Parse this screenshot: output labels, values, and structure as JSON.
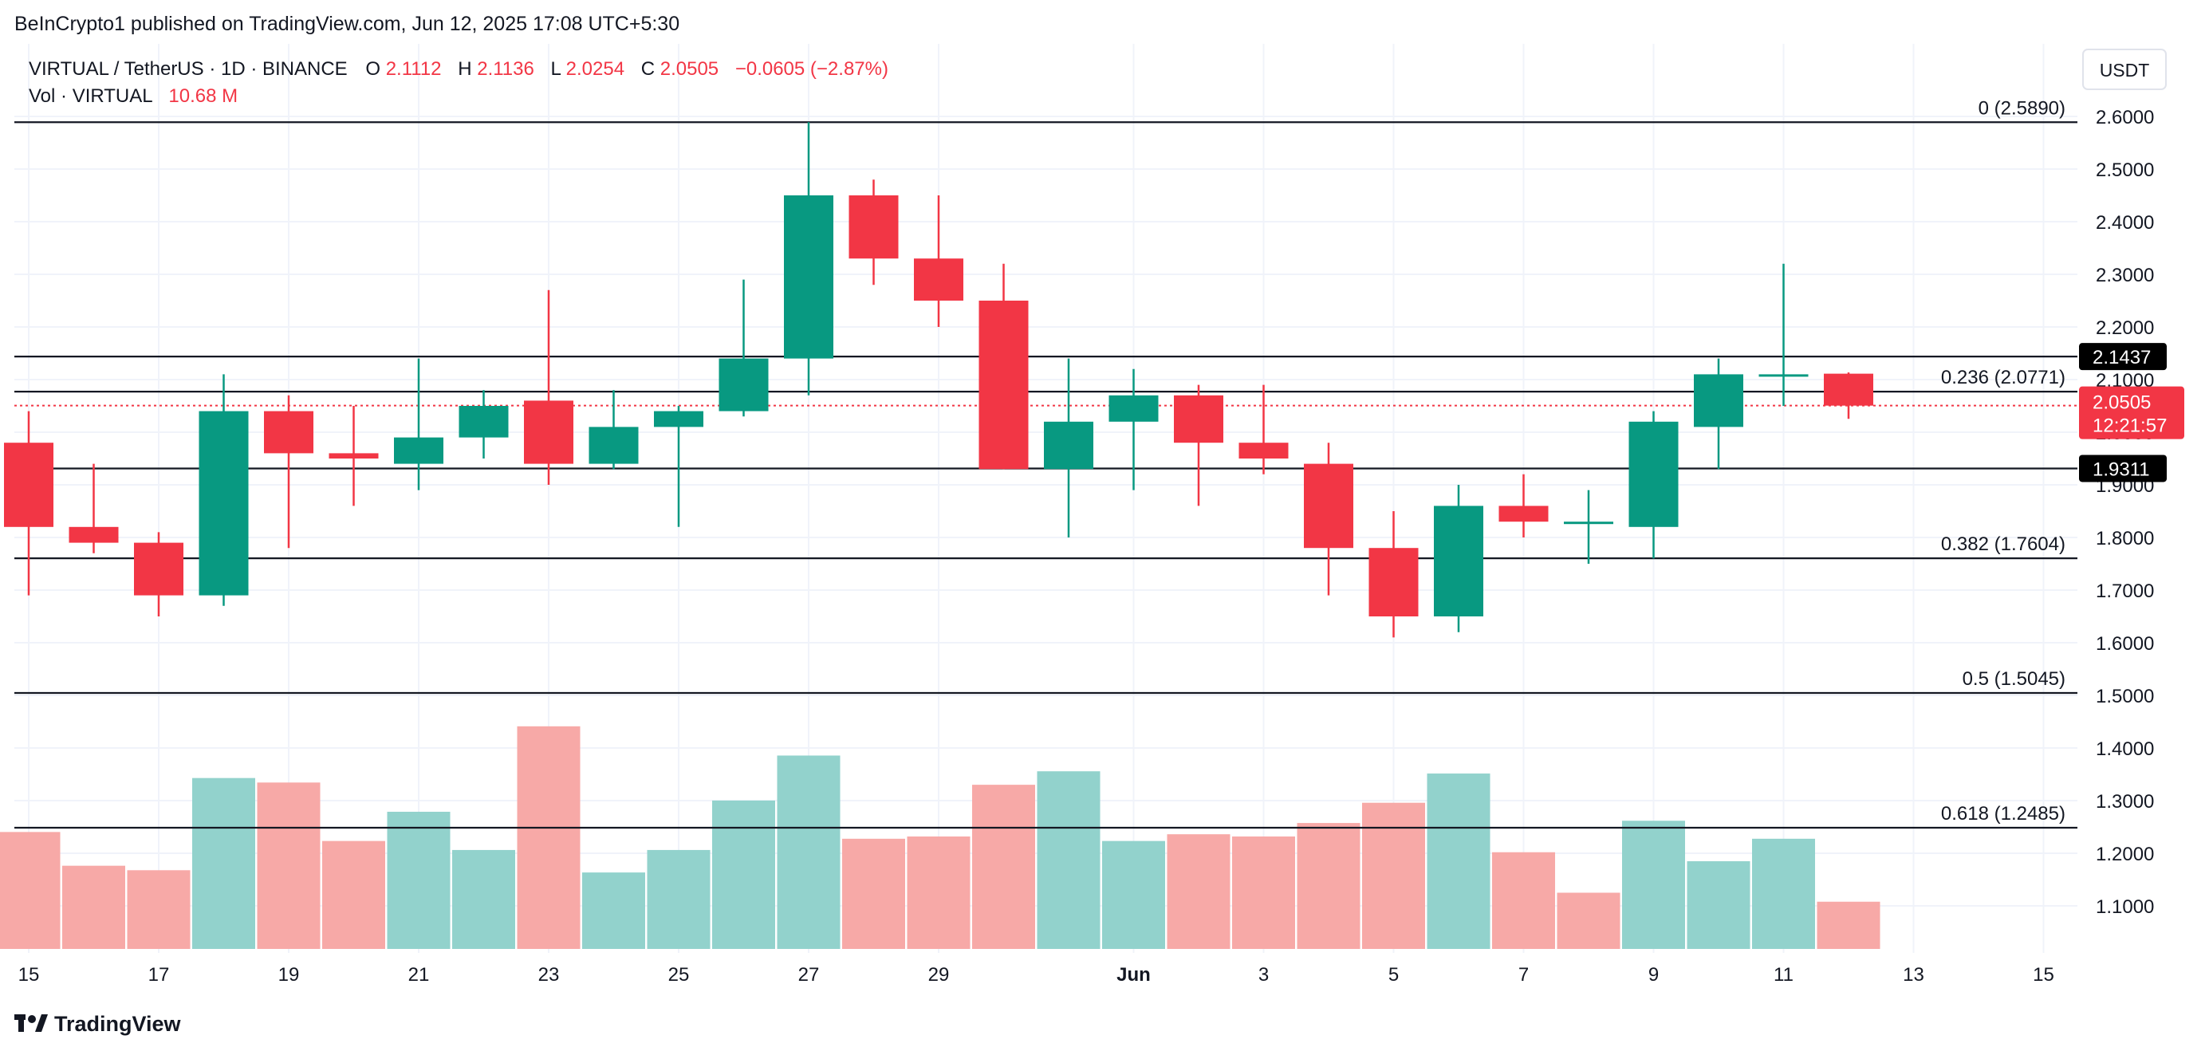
{
  "header": {
    "publisher_line": "BeInCrypto1 published on TradingView.com, Jun 12, 2025 17:08 UTC+5:30"
  },
  "legend": {
    "symbol": "VIRTUAL / TetherUS · 1D · BINANCE",
    "open_label": "O",
    "open_value": "2.1112",
    "high_label": "H",
    "high_value": "2.1136",
    "low_label": "L",
    "low_value": "2.0254",
    "close_label": "C",
    "close_value": "2.0505",
    "change": "−0.0605 (−2.87%)",
    "vol_label": "Vol · VIRTUAL",
    "vol_value": "10.68 M"
  },
  "price_scale": {
    "currency": "USDT",
    "current_price": "2.0505",
    "countdown": "12:21:57",
    "marker_upper": "2.1437",
    "marker_lower": "1.9311"
  },
  "footer": {
    "brand": "TradingView"
  },
  "colors": {
    "up": "#089981",
    "down": "#f23645",
    "vol_up": "#92d2cc",
    "vol_down": "#f7a9a7",
    "grid": "#f0f3fa",
    "line": "#131722",
    "text": "#131722"
  },
  "chart_data": {
    "type": "candlestick",
    "symbol": "VIRTUAL / TetherUS",
    "interval": "1D",
    "exchange": "BINANCE",
    "ylim": [
      0.98,
      2.64
    ],
    "y_ticks": [
      1.1,
      1.2,
      1.3,
      1.4,
      1.5,
      1.6,
      1.7,
      1.8,
      1.9,
      2.0,
      2.1,
      2.2,
      2.3,
      2.4,
      2.5,
      2.6
    ],
    "x_ticks": [
      {
        "day": 15,
        "label": "15"
      },
      {
        "day": 17,
        "label": "17"
      },
      {
        "day": 19,
        "label": "19"
      },
      {
        "day": 21,
        "label": "21"
      },
      {
        "day": 23,
        "label": "23"
      },
      {
        "day": 25,
        "label": "25"
      },
      {
        "day": 27,
        "label": "27"
      },
      {
        "day": 29,
        "label": "29"
      },
      {
        "day": 32,
        "label": "Jun"
      },
      {
        "day": 34,
        "label": "3"
      },
      {
        "day": 36,
        "label": "5"
      },
      {
        "day": 38,
        "label": "7"
      },
      {
        "day": 40,
        "label": "9"
      },
      {
        "day": 42,
        "label": "11"
      },
      {
        "day": 44,
        "label": "13"
      },
      {
        "day": 46,
        "label": "15"
      }
    ],
    "candles": [
      {
        "day": 15,
        "o": 1.98,
        "h": 2.04,
        "l": 1.69,
        "c": 1.82
      },
      {
        "day": 16,
        "o": 1.82,
        "h": 1.94,
        "l": 1.77,
        "c": 1.79
      },
      {
        "day": 17,
        "o": 1.79,
        "h": 1.81,
        "l": 1.65,
        "c": 1.69
      },
      {
        "day": 18,
        "o": 1.69,
        "h": 2.11,
        "l": 1.67,
        "c": 2.04
      },
      {
        "day": 19,
        "o": 2.04,
        "h": 2.07,
        "l": 1.78,
        "c": 1.96
      },
      {
        "day": 20,
        "o": 1.96,
        "h": 2.05,
        "l": 1.86,
        "c": 1.95
      },
      {
        "day": 21,
        "o": 1.94,
        "h": 2.14,
        "l": 1.89,
        "c": 1.99
      },
      {
        "day": 22,
        "o": 1.99,
        "h": 2.08,
        "l": 1.95,
        "c": 2.05
      },
      {
        "day": 23,
        "o": 2.06,
        "h": 2.27,
        "l": 1.9,
        "c": 1.94
      },
      {
        "day": 24,
        "o": 1.94,
        "h": 2.08,
        "l": 1.93,
        "c": 2.01
      },
      {
        "day": 25,
        "o": 2.01,
        "h": 2.05,
        "l": 1.82,
        "c": 2.04
      },
      {
        "day": 26,
        "o": 2.04,
        "h": 2.29,
        "l": 2.03,
        "c": 2.14
      },
      {
        "day": 27,
        "o": 2.14,
        "h": 2.589,
        "l": 2.07,
        "c": 2.45
      },
      {
        "day": 28,
        "o": 2.45,
        "h": 2.48,
        "l": 2.28,
        "c": 2.33
      },
      {
        "day": 29,
        "o": 2.33,
        "h": 2.45,
        "l": 2.2,
        "c": 2.25
      },
      {
        "day": 30,
        "o": 2.25,
        "h": 2.32,
        "l": 1.93,
        "c": 1.93
      },
      {
        "day": 31,
        "o": 1.93,
        "h": 2.14,
        "l": 1.8,
        "c": 2.02
      },
      {
        "day": 32,
        "o": 2.02,
        "h": 2.12,
        "l": 1.89,
        "c": 2.07
      },
      {
        "day": 33,
        "o": 2.07,
        "h": 2.09,
        "l": 1.86,
        "c": 1.98
      },
      {
        "day": 34,
        "o": 1.98,
        "h": 2.09,
        "l": 1.92,
        "c": 1.95
      },
      {
        "day": 35,
        "o": 1.94,
        "h": 1.98,
        "l": 1.69,
        "c": 1.78
      },
      {
        "day": 36,
        "o": 1.78,
        "h": 1.85,
        "l": 1.61,
        "c": 1.65
      },
      {
        "day": 37,
        "o": 1.65,
        "h": 1.9,
        "l": 1.62,
        "c": 1.86
      },
      {
        "day": 38,
        "o": 1.86,
        "h": 1.92,
        "l": 1.8,
        "c": 1.83
      },
      {
        "day": 39,
        "o": 1.83,
        "h": 1.89,
        "l": 1.75,
        "c": 1.83
      },
      {
        "day": 40,
        "o": 1.82,
        "h": 2.04,
        "l": 1.76,
        "c": 2.02
      },
      {
        "day": 41,
        "o": 2.01,
        "h": 2.14,
        "l": 1.93,
        "c": 2.11
      },
      {
        "day": 42,
        "o": 2.11,
        "h": 2.32,
        "l": 2.05,
        "c": 2.11
      },
      {
        "day": 43,
        "o": 2.1112,
        "h": 2.1136,
        "l": 2.0254,
        "c": 2.0505
      }
    ],
    "volume": [
      {
        "day": 15,
        "v": 0.52,
        "dir": "down"
      },
      {
        "day": 16,
        "v": 0.37,
        "dir": "down"
      },
      {
        "day": 17,
        "v": 0.35,
        "dir": "down"
      },
      {
        "day": 18,
        "v": 0.76,
        "dir": "up"
      },
      {
        "day": 19,
        "v": 0.74,
        "dir": "down"
      },
      {
        "day": 20,
        "v": 0.48,
        "dir": "down"
      },
      {
        "day": 21,
        "v": 0.61,
        "dir": "up"
      },
      {
        "day": 22,
        "v": 0.44,
        "dir": "up"
      },
      {
        "day": 23,
        "v": 0.99,
        "dir": "down"
      },
      {
        "day": 24,
        "v": 0.34,
        "dir": "up"
      },
      {
        "day": 25,
        "v": 0.44,
        "dir": "up"
      },
      {
        "day": 26,
        "v": 0.66,
        "dir": "up"
      },
      {
        "day": 27,
        "v": 0.86,
        "dir": "up"
      },
      {
        "day": 28,
        "v": 0.49,
        "dir": "down"
      },
      {
        "day": 29,
        "v": 0.5,
        "dir": "down"
      },
      {
        "day": 30,
        "v": 0.73,
        "dir": "down"
      },
      {
        "day": 31,
        "v": 0.79,
        "dir": "up"
      },
      {
        "day": 32,
        "v": 0.48,
        "dir": "up"
      },
      {
        "day": 33,
        "v": 0.51,
        "dir": "down"
      },
      {
        "day": 34,
        "v": 0.5,
        "dir": "down"
      },
      {
        "day": 35,
        "v": 0.56,
        "dir": "down"
      },
      {
        "day": 36,
        "v": 0.65,
        "dir": "down"
      },
      {
        "day": 37,
        "v": 0.78,
        "dir": "up"
      },
      {
        "day": 38,
        "v": 0.43,
        "dir": "down"
      },
      {
        "day": 39,
        "v": 0.25,
        "dir": "down"
      },
      {
        "day": 40,
        "v": 0.57,
        "dir": "up"
      },
      {
        "day": 41,
        "v": 0.39,
        "dir": "up"
      },
      {
        "day": 42,
        "v": 0.49,
        "dir": "up"
      },
      {
        "day": 43,
        "v": 0.21,
        "dir": "down"
      }
    ],
    "fib_levels": [
      {
        "label": "0 (2.5890)",
        "value": 2.589
      },
      {
        "label": "0.236 (2.0771)",
        "value": 2.0771
      },
      {
        "label": "0.382 (1.7604)",
        "value": 1.7604
      },
      {
        "label": "0.5 (1.5045)",
        "value": 1.5045
      },
      {
        "label": "0.618 (1.2485)",
        "value": 1.2485
      }
    ],
    "horizontal_lines": [
      2.1437,
      1.9311
    ],
    "current_price": 2.0505,
    "grid": true
  }
}
